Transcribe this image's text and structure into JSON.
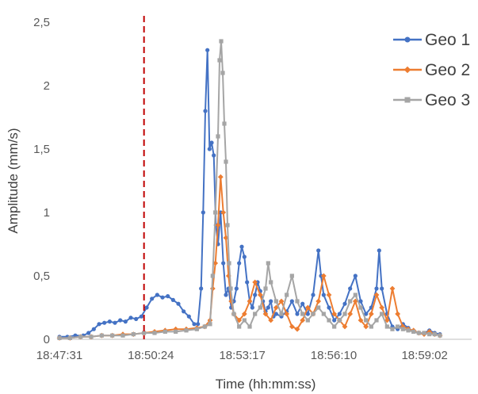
{
  "chart_data": {
    "type": "line",
    "title": "",
    "xlabel": "Time (hh:mm:ss)",
    "ylabel": "Amplitude (mm/s)",
    "x_tick_labels": [
      "18:47:31",
      "18:50:24",
      "18:53:17",
      "18:56:10",
      "18:59:02"
    ],
    "x_tick_seconds": [
      0,
      173,
      346,
      519,
      691
    ],
    "xlim_seconds": [
      0,
      780
    ],
    "y_tick_labels": [
      "0",
      "0,5",
      "1",
      "1,5",
      "2",
      "2,5"
    ],
    "y_tick_values": [
      0,
      0.5,
      1,
      1.5,
      2,
      2.5
    ],
    "ylim": [
      0,
      2.5
    ],
    "grid": false,
    "legend_position": "top-right",
    "event_marker": {
      "x_seconds": 160,
      "color": "#C00000",
      "style": "dashed"
    },
    "series": [
      {
        "name": "Geo 1",
        "color": "#4472C4",
        "marker": "circle",
        "points": [
          [
            0,
            0.02
          ],
          [
            15,
            0.02
          ],
          [
            30,
            0.03
          ],
          [
            45,
            0.03
          ],
          [
            55,
            0.05
          ],
          [
            65,
            0.08
          ],
          [
            75,
            0.12
          ],
          [
            85,
            0.13
          ],
          [
            95,
            0.14
          ],
          [
            105,
            0.13
          ],
          [
            115,
            0.15
          ],
          [
            125,
            0.14
          ],
          [
            135,
            0.17
          ],
          [
            145,
            0.16
          ],
          [
            155,
            0.18
          ],
          [
            165,
            0.25
          ],
          [
            175,
            0.32
          ],
          [
            185,
            0.35
          ],
          [
            195,
            0.33
          ],
          [
            205,
            0.34
          ],
          [
            215,
            0.31
          ],
          [
            225,
            0.28
          ],
          [
            235,
            0.22
          ],
          [
            245,
            0.18
          ],
          [
            255,
            0.12
          ],
          [
            262,
            0.12
          ],
          [
            268,
            0.4
          ],
          [
            272,
            1.0
          ],
          [
            276,
            1.8
          ],
          [
            280,
            2.28
          ],
          [
            284,
            1.5
          ],
          [
            288,
            1.55
          ],
          [
            292,
            1.45
          ],
          [
            296,
            0.9
          ],
          [
            300,
            0.75
          ],
          [
            305,
            1.0
          ],
          [
            310,
            0.6
          ],
          [
            315,
            0.35
          ],
          [
            320,
            0.4
          ],
          [
            325,
            0.25
          ],
          [
            330,
            0.3
          ],
          [
            335,
            0.4
          ],
          [
            340,
            0.6
          ],
          [
            345,
            0.73
          ],
          [
            350,
            0.65
          ],
          [
            355,
            0.45
          ],
          [
            360,
            0.3
          ],
          [
            365,
            0.25
          ],
          [
            370,
            0.35
          ],
          [
            375,
            0.45
          ],
          [
            380,
            0.38
          ],
          [
            385,
            0.3
          ],
          [
            390,
            0.22
          ],
          [
            395,
            0.25
          ],
          [
            400,
            0.3
          ],
          [
            405,
            0.18
          ],
          [
            410,
            0.2
          ],
          [
            420,
            0.18
          ],
          [
            430,
            0.22
          ],
          [
            440,
            0.3
          ],
          [
            450,
            0.2
          ],
          [
            460,
            0.28
          ],
          [
            470,
            0.2
          ],
          [
            480,
            0.35
          ],
          [
            490,
            0.7
          ],
          [
            495,
            0.5
          ],
          [
            500,
            0.35
          ],
          [
            510,
            0.25
          ],
          [
            520,
            0.15
          ],
          [
            530,
            0.2
          ],
          [
            540,
            0.28
          ],
          [
            550,
            0.4
          ],
          [
            560,
            0.5
          ],
          [
            570,
            0.3
          ],
          [
            580,
            0.2
          ],
          [
            590,
            0.25
          ],
          [
            600,
            0.4
          ],
          [
            605,
            0.7
          ],
          [
            610,
            0.4
          ],
          [
            620,
            0.2
          ],
          [
            630,
            0.1
          ],
          [
            640,
            0.08
          ],
          [
            650,
            0.12
          ],
          [
            660,
            0.09
          ],
          [
            670,
            0.06
          ],
          [
            680,
            0.05
          ],
          [
            690,
            0.05
          ],
          [
            700,
            0.07
          ],
          [
            710,
            0.05
          ],
          [
            720,
            0.04
          ]
        ]
      },
      {
        "name": "Geo 2",
        "color": "#ED7D31",
        "marker": "diamond",
        "points": [
          [
            0,
            0.01
          ],
          [
            20,
            0.01
          ],
          [
            40,
            0.02
          ],
          [
            60,
            0.02
          ],
          [
            80,
            0.03
          ],
          [
            100,
            0.03
          ],
          [
            120,
            0.04
          ],
          [
            140,
            0.04
          ],
          [
            160,
            0.05
          ],
          [
            180,
            0.06
          ],
          [
            200,
            0.07
          ],
          [
            220,
            0.08
          ],
          [
            240,
            0.08
          ],
          [
            260,
            0.09
          ],
          [
            275,
            0.1
          ],
          [
            285,
            0.15
          ],
          [
            290,
            0.4
          ],
          [
            295,
            0.6
          ],
          [
            300,
            0.9
          ],
          [
            305,
            1.28
          ],
          [
            310,
            1.0
          ],
          [
            315,
            0.8
          ],
          [
            320,
            0.5
          ],
          [
            325,
            0.3
          ],
          [
            330,
            0.2
          ],
          [
            340,
            0.15
          ],
          [
            350,
            0.2
          ],
          [
            360,
            0.3
          ],
          [
            370,
            0.45
          ],
          [
            380,
            0.35
          ],
          [
            390,
            0.2
          ],
          [
            400,
            0.15
          ],
          [
            410,
            0.25
          ],
          [
            420,
            0.3
          ],
          [
            430,
            0.2
          ],
          [
            440,
            0.1
          ],
          [
            450,
            0.08
          ],
          [
            460,
            0.15
          ],
          [
            470,
            0.25
          ],
          [
            480,
            0.2
          ],
          [
            490,
            0.3
          ],
          [
            500,
            0.5
          ],
          [
            510,
            0.35
          ],
          [
            520,
            0.2
          ],
          [
            530,
            0.15
          ],
          [
            540,
            0.1
          ],
          [
            550,
            0.2
          ],
          [
            560,
            0.3
          ],
          [
            570,
            0.15
          ],
          [
            580,
            0.1
          ],
          [
            590,
            0.2
          ],
          [
            600,
            0.35
          ],
          [
            610,
            0.25
          ],
          [
            620,
            0.15
          ],
          [
            630,
            0.4
          ],
          [
            640,
            0.2
          ],
          [
            650,
            0.1
          ],
          [
            660,
            0.08
          ],
          [
            670,
            0.07
          ],
          [
            680,
            0.05
          ],
          [
            690,
            0.04
          ],
          [
            700,
            0.06
          ],
          [
            710,
            0.04
          ],
          [
            720,
            0.03
          ]
        ]
      },
      {
        "name": "Geo 3",
        "color": "#A5A5A5",
        "marker": "square",
        "points": [
          [
            0,
            0.01
          ],
          [
            20,
            0.01
          ],
          [
            40,
            0.02
          ],
          [
            60,
            0.02
          ],
          [
            80,
            0.03
          ],
          [
            100,
            0.03
          ],
          [
            120,
            0.03
          ],
          [
            140,
            0.04
          ],
          [
            160,
            0.05
          ],
          [
            180,
            0.05
          ],
          [
            200,
            0.06
          ],
          [
            220,
            0.06
          ],
          [
            240,
            0.07
          ],
          [
            260,
            0.08
          ],
          [
            275,
            0.1
          ],
          [
            285,
            0.12
          ],
          [
            290,
            0.5
          ],
          [
            295,
            1.0
          ],
          [
            300,
            1.6
          ],
          [
            303,
            2.2
          ],
          [
            306,
            2.35
          ],
          [
            309,
            2.1
          ],
          [
            312,
            1.7
          ],
          [
            315,
            1.4
          ],
          [
            318,
            0.9
          ],
          [
            321,
            0.6
          ],
          [
            324,
            0.4
          ],
          [
            330,
            0.2
          ],
          [
            340,
            0.1
          ],
          [
            350,
            0.15
          ],
          [
            360,
            0.1
          ],
          [
            370,
            0.2
          ],
          [
            380,
            0.25
          ],
          [
            390,
            0.4
          ],
          [
            395,
            0.6
          ],
          [
            400,
            0.45
          ],
          [
            410,
            0.3
          ],
          [
            420,
            0.2
          ],
          [
            430,
            0.35
          ],
          [
            440,
            0.5
          ],
          [
            450,
            0.3
          ],
          [
            460,
            0.2
          ],
          [
            470,
            0.15
          ],
          [
            480,
            0.2
          ],
          [
            490,
            0.25
          ],
          [
            500,
            0.2
          ],
          [
            510,
            0.15
          ],
          [
            520,
            0.1
          ],
          [
            530,
            0.15
          ],
          [
            540,
            0.2
          ],
          [
            550,
            0.3
          ],
          [
            560,
            0.35
          ],
          [
            570,
            0.25
          ],
          [
            580,
            0.15
          ],
          [
            590,
            0.1
          ],
          [
            600,
            0.15
          ],
          [
            610,
            0.2
          ],
          [
            620,
            0.1
          ],
          [
            630,
            0.08
          ],
          [
            640,
            0.1
          ],
          [
            650,
            0.08
          ],
          [
            660,
            0.07
          ],
          [
            670,
            0.06
          ],
          [
            680,
            0.05
          ],
          [
            690,
            0.05
          ],
          [
            700,
            0.04
          ],
          [
            710,
            0.04
          ],
          [
            720,
            0.03
          ]
        ]
      }
    ]
  }
}
